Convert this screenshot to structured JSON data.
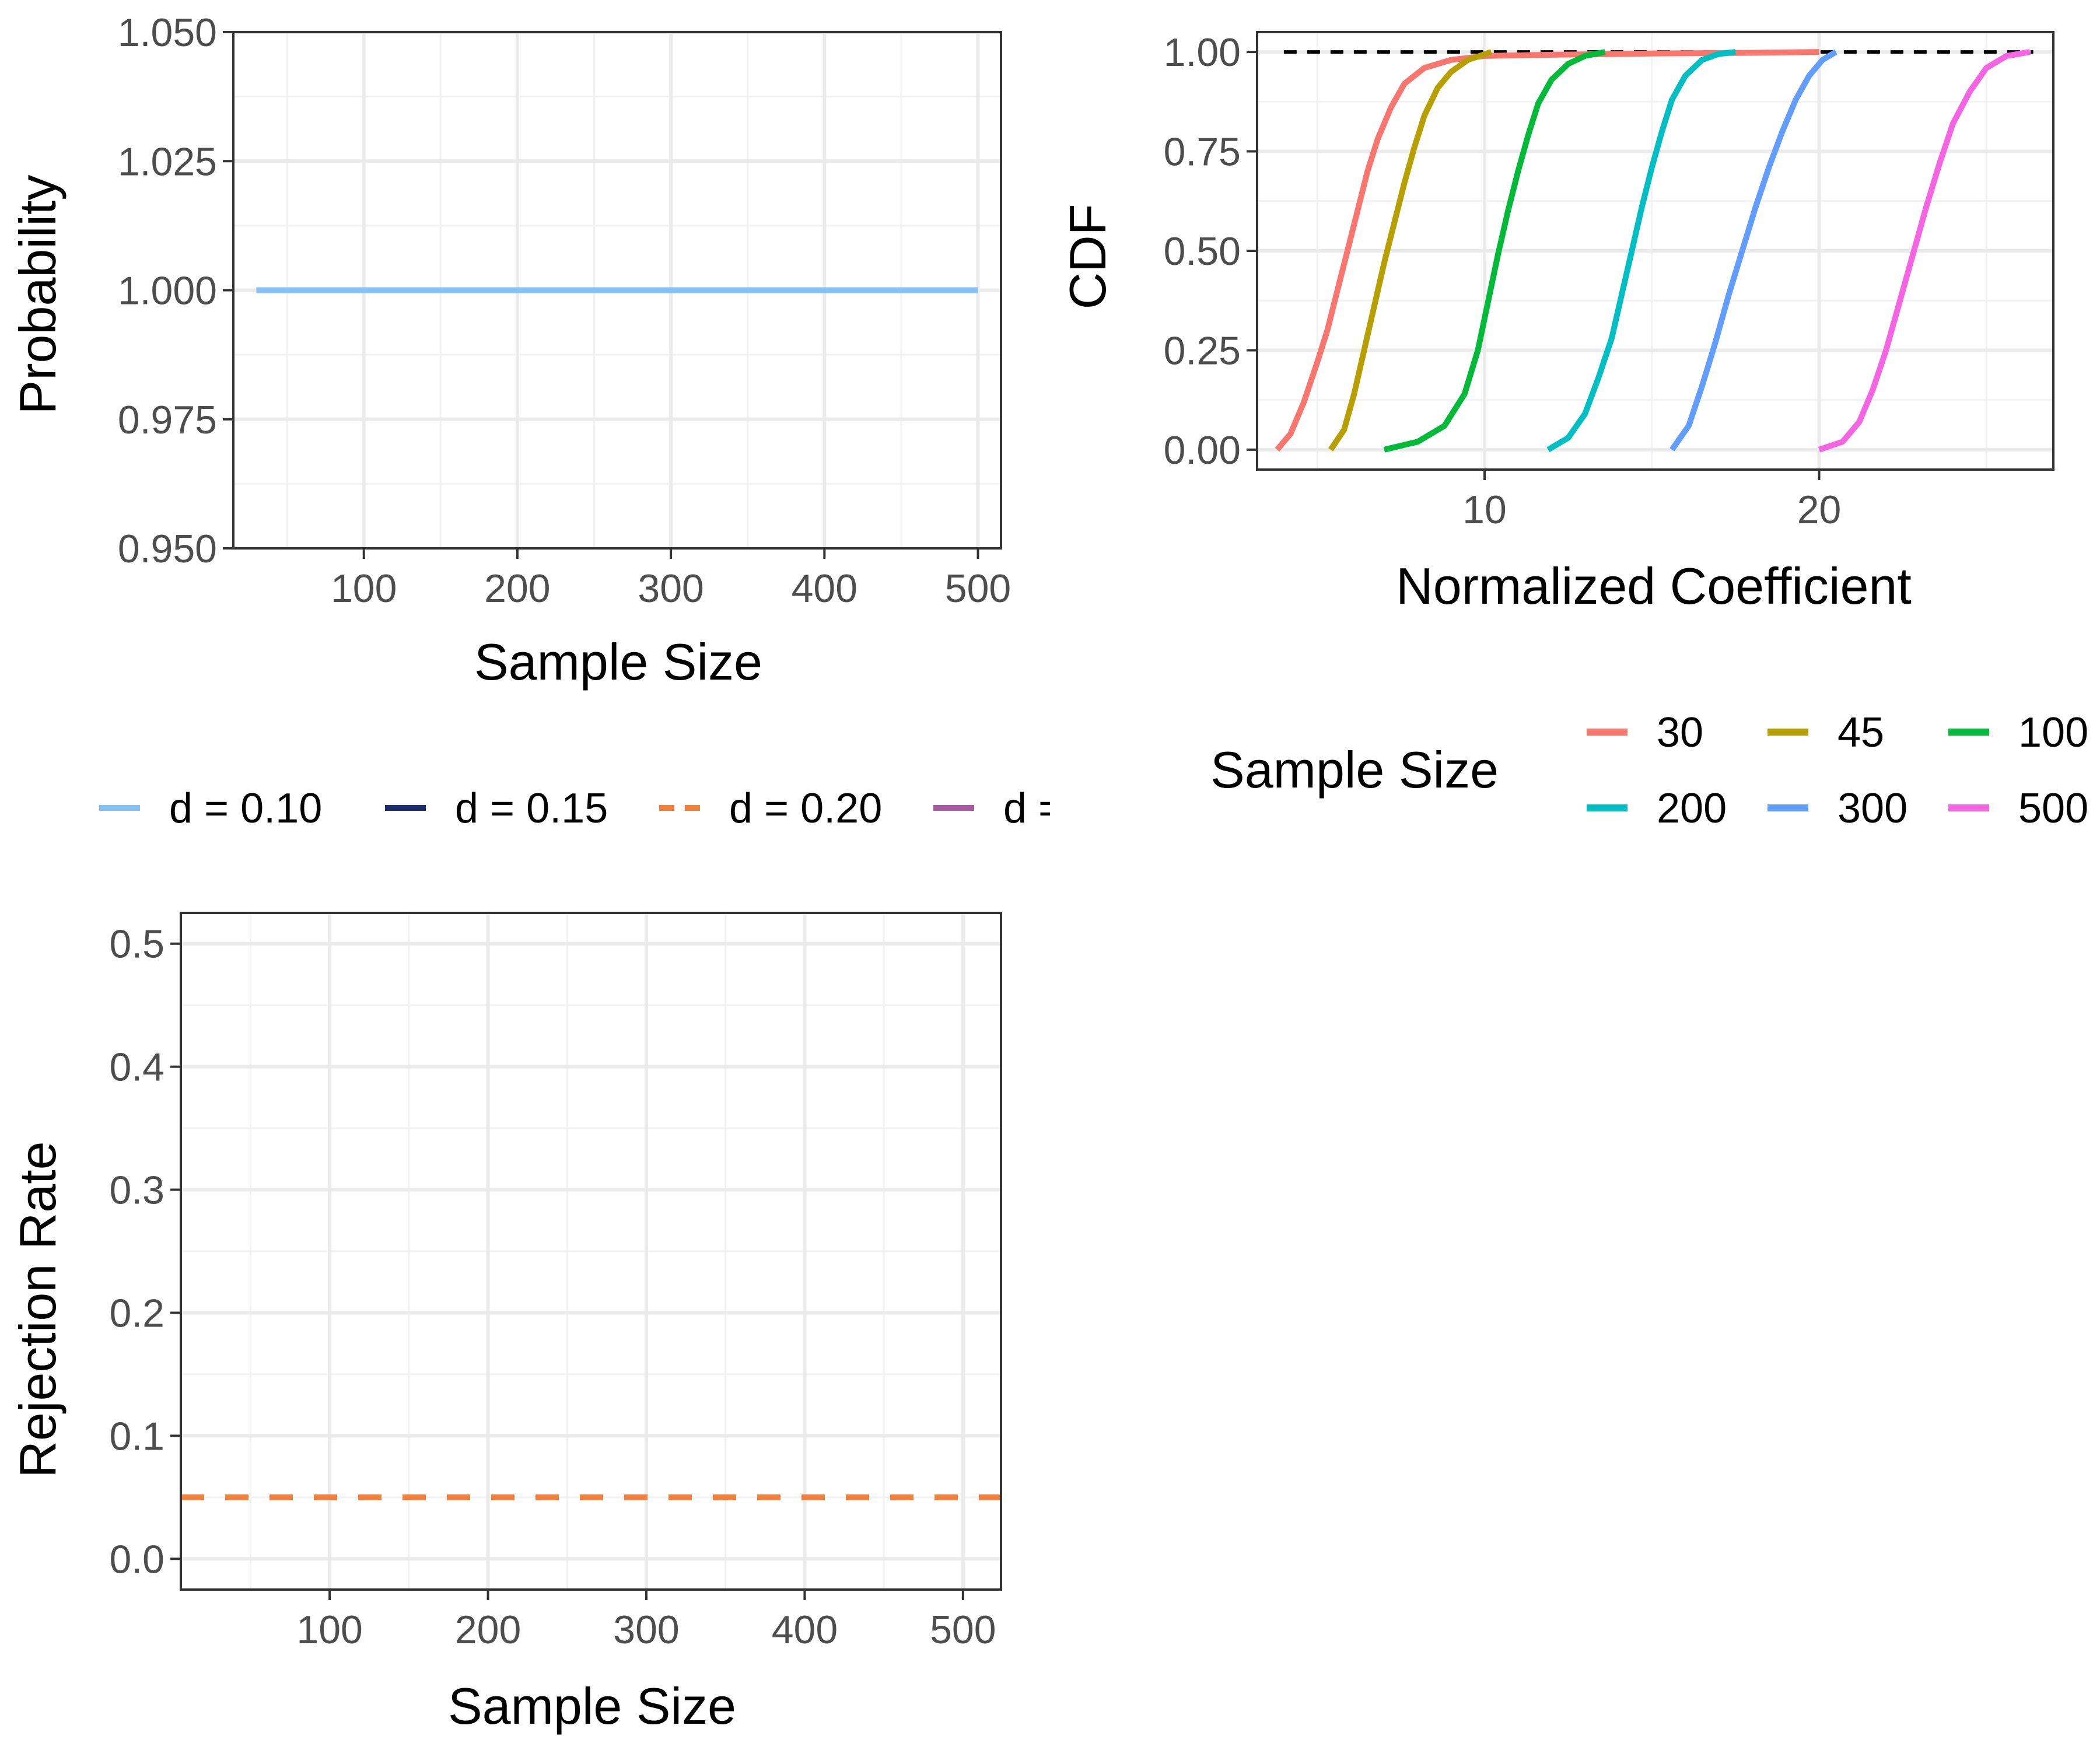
{
  "chart_data": [
    {
      "type": "line",
      "xlabel": "Sample Size",
      "ylabel": "Probability",
      "xlim": [
        15,
        515
      ],
      "ylim": [
        0.95,
        1.05
      ],
      "xticks": [
        100,
        200,
        300,
        400,
        500
      ],
      "xtick_labels": [
        "100",
        "200",
        "300",
        "400",
        "500"
      ],
      "yticks": [
        0.95,
        0.975,
        1.0,
        1.025,
        1.05
      ],
      "ytick_labels": [
        "0.950",
        "0.975",
        "1.000",
        "1.025",
        "1.050"
      ],
      "grid": true,
      "series": [
        {
          "name": "d = 0.10",
          "color": "#85C1F5",
          "dash": "solid",
          "x": [
            30,
            500
          ],
          "y": [
            1.0,
            1.0
          ]
        }
      ]
    },
    {
      "type": "line",
      "subtype": "ecdf",
      "xlabel": "Normalized Coefficient",
      "ylabel": "CDF",
      "xlim": [
        3.2,
        27.0
      ],
      "ylim": [
        -0.05,
        1.05
      ],
      "xticks": [
        10,
        20
      ],
      "xtick_labels": [
        "10",
        "20"
      ],
      "yticks": [
        0.0,
        0.25,
        0.5,
        0.75,
        1.0
      ],
      "ytick_labels": [
        "0.00",
        "0.25",
        "0.50",
        "0.75",
        "1.00"
      ],
      "grid": true,
      "reference_line": {
        "y": 1.0,
        "x": [
          4.0,
          26.4
        ],
        "style": "dashed",
        "color": "#000000"
      },
      "series": [
        {
          "name": "30",
          "color": "#F8766D",
          "x": [
            3.8,
            4.2,
            4.6,
            5.0,
            5.3,
            5.6,
            5.9,
            6.2,
            6.5,
            6.8,
            7.2,
            7.6,
            8.2,
            9.0,
            10.0,
            12.0,
            15.0,
            18.0,
            20.0
          ],
          "y": [
            0.0,
            0.04,
            0.12,
            0.22,
            0.3,
            0.4,
            0.5,
            0.6,
            0.7,
            0.78,
            0.86,
            0.92,
            0.96,
            0.98,
            0.99,
            0.993,
            0.996,
            0.998,
            1.0
          ]
        },
        {
          "name": "45",
          "color": "#B79F00",
          "x": [
            5.4,
            5.8,
            6.1,
            6.4,
            6.7,
            7.0,
            7.3,
            7.6,
            7.9,
            8.2,
            8.6,
            9.0,
            9.5,
            10.2
          ],
          "y": [
            0.0,
            0.05,
            0.14,
            0.25,
            0.36,
            0.47,
            0.57,
            0.67,
            0.76,
            0.84,
            0.91,
            0.95,
            0.98,
            1.0
          ]
        },
        {
          "name": "100",
          "color": "#00BA38",
          "x": [
            7.0,
            8.0,
            8.8,
            9.4,
            9.8,
            10.1,
            10.4,
            10.7,
            11.0,
            11.3,
            11.6,
            12.0,
            12.5,
            13.0,
            13.6
          ],
          "y": [
            0.0,
            0.02,
            0.06,
            0.14,
            0.25,
            0.37,
            0.49,
            0.6,
            0.7,
            0.79,
            0.87,
            0.93,
            0.97,
            0.99,
            1.0
          ]
        },
        {
          "name": "200",
          "color": "#00BFC4",
          "x": [
            11.9,
            12.5,
            13.0,
            13.4,
            13.8,
            14.1,
            14.4,
            14.7,
            15.0,
            15.3,
            15.6,
            16.0,
            16.5,
            17.0,
            17.5
          ],
          "y": [
            0.0,
            0.03,
            0.09,
            0.18,
            0.28,
            0.39,
            0.5,
            0.61,
            0.71,
            0.8,
            0.88,
            0.94,
            0.98,
            0.995,
            1.0
          ]
        },
        {
          "name": "300",
          "color": "#619CFF",
          "x": [
            15.6,
            16.1,
            16.5,
            16.9,
            17.3,
            17.7,
            18.1,
            18.5,
            18.9,
            19.3,
            19.7,
            20.1,
            20.5
          ],
          "y": [
            0.0,
            0.06,
            0.16,
            0.27,
            0.39,
            0.5,
            0.61,
            0.71,
            0.8,
            0.88,
            0.94,
            0.98,
            1.0
          ]
        },
        {
          "name": "500",
          "color": "#F564E3",
          "x": [
            20.0,
            20.7,
            21.2,
            21.6,
            22.0,
            22.4,
            22.8,
            23.2,
            23.6,
            24.0,
            24.5,
            25.0,
            25.6,
            26.3
          ],
          "y": [
            0.0,
            0.02,
            0.07,
            0.15,
            0.25,
            0.37,
            0.49,
            0.61,
            0.72,
            0.82,
            0.9,
            0.96,
            0.99,
            1.0
          ]
        }
      ]
    },
    {
      "type": "line",
      "xlabel": "Sample Size",
      "ylabel": "Rejection Rate",
      "xlim": [
        6,
        524
      ],
      "ylim": [
        -0.025,
        0.525
      ],
      "xticks": [
        100,
        200,
        300,
        400,
        500
      ],
      "xtick_labels": [
        "100",
        "200",
        "300",
        "400",
        "500"
      ],
      "yticks": [
        0.0,
        0.1,
        0.2,
        0.3,
        0.4,
        0.5
      ],
      "ytick_labels": [
        "0.0",
        "0.1",
        "0.2",
        "0.3",
        "0.4",
        "0.5"
      ],
      "grid": true,
      "series": [
        {
          "name": "d = 0.20",
          "color": "#F07F3C",
          "dash": "dashed",
          "x": [
            6,
            524
          ],
          "y": [
            0.05,
            0.05
          ]
        }
      ]
    }
  ],
  "legend_left": {
    "items": [
      {
        "label": "d = 0.10",
        "color": "#85C1F5",
        "dash": "solid"
      },
      {
        "label": "d = 0.15",
        "color": "#1B2A6B",
        "dash": "solid"
      },
      {
        "label": "d = 0.20",
        "color": "#F07F3C",
        "dash": "dashed"
      },
      {
        "label": "d =",
        "color": "#A45AA0",
        "dash": "solid"
      }
    ]
  },
  "legend_right": {
    "title": "Sample Size",
    "items": [
      {
        "label": "30",
        "color": "#F8766D"
      },
      {
        "label": "45",
        "color": "#B79F00"
      },
      {
        "label": "100",
        "color": "#00BA38"
      },
      {
        "label": "200",
        "color": "#00BFC4"
      },
      {
        "label": "300",
        "color": "#619CFF"
      },
      {
        "label": "500",
        "color": "#F564E3"
      }
    ]
  }
}
